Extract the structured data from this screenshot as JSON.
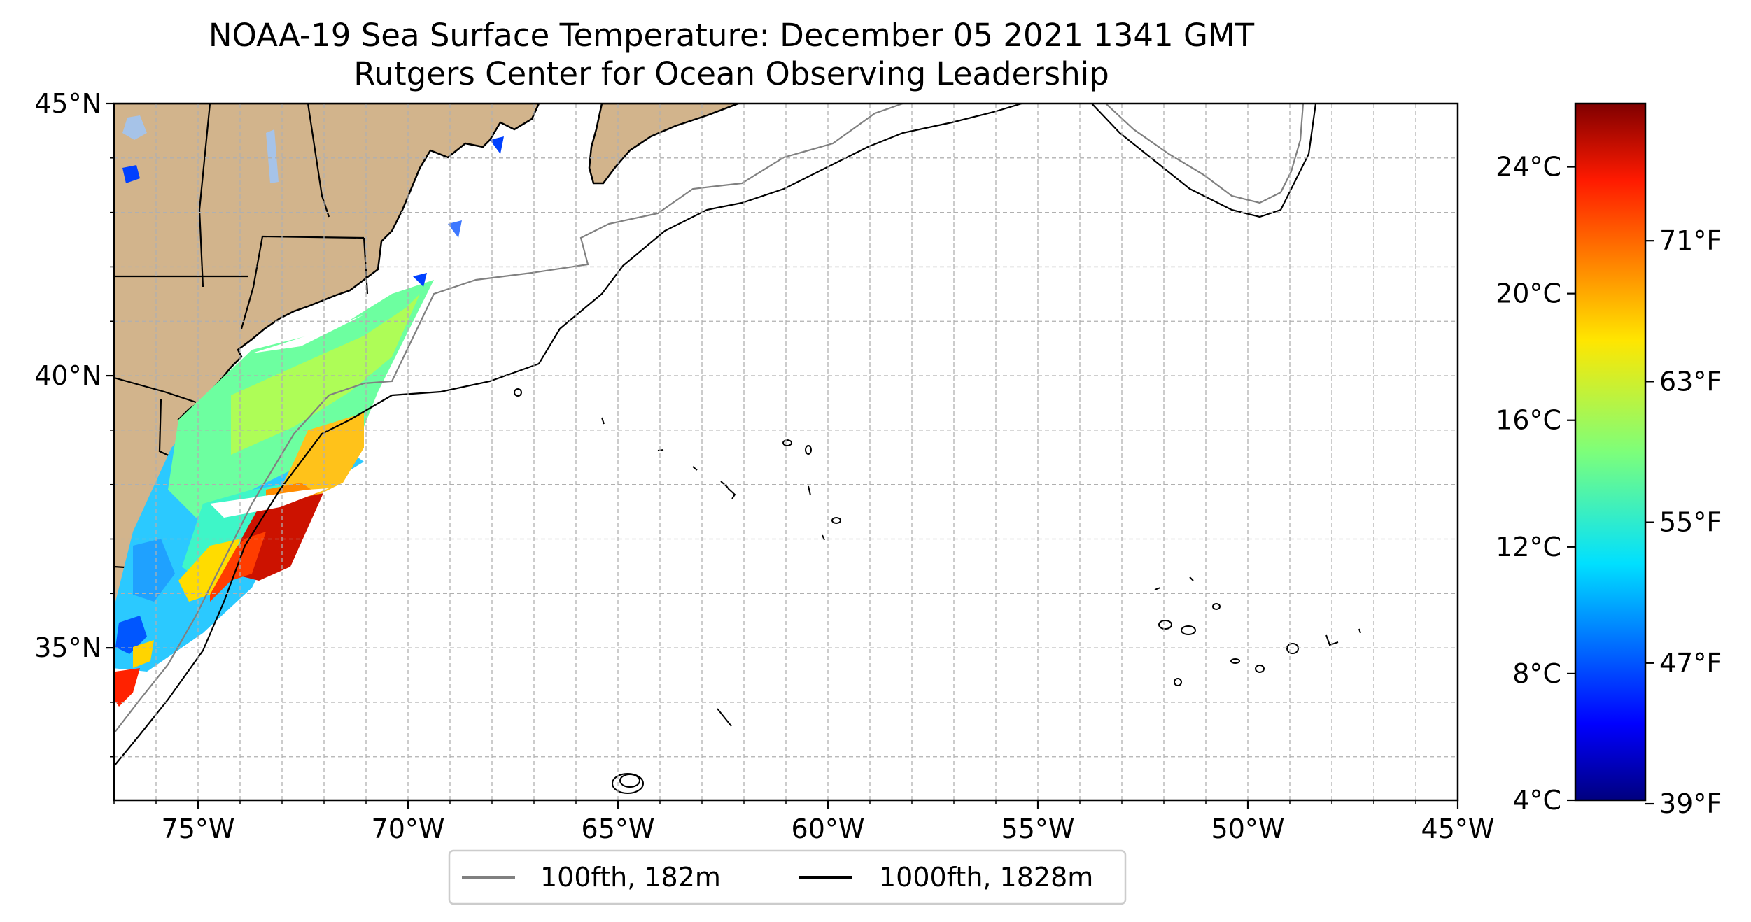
{
  "title_line1": "NOAA-19 Sea Surface Temperature: December 05 2021 1341 GMT",
  "title_line2": "Rutgers Center for Ocean Observing Leadership",
  "map": {
    "lon_range": [
      -77,
      -45
    ],
    "lat_range": [
      32.2,
      45
    ],
    "land_color": "#d2b48c",
    "lake_color": "#a6c3e8",
    "grid": true,
    "lon_ticks": [
      {
        "value": -75,
        "label": "75°W"
      },
      {
        "value": -70,
        "label": "70°W"
      },
      {
        "value": -65,
        "label": "65°W"
      },
      {
        "value": -60,
        "label": "60°W"
      },
      {
        "value": -55,
        "label": "55°W"
      },
      {
        "value": -50,
        "label": "50°W"
      },
      {
        "value": -45,
        "label": "45°W"
      }
    ],
    "lat_ticks": [
      {
        "value": 45,
        "label": "45°N"
      },
      {
        "value": 40,
        "label": "40°N"
      },
      {
        "value": 35,
        "label": "35°N"
      }
    ]
  },
  "colorbar": {
    "colormap": "jet",
    "range_c": [
      4,
      26
    ],
    "celsius_ticks": [
      {
        "value": 24,
        "label": "24°C"
      },
      {
        "value": 20,
        "label": "20°C"
      },
      {
        "value": 16,
        "label": "16°C"
      },
      {
        "value": 12,
        "label": "12°C"
      },
      {
        "value": 8,
        "label": "8°C"
      },
      {
        "value": 4,
        "label": "4°C"
      }
    ],
    "fahrenheit_ticks": [
      {
        "value": 71,
        "label": "71°F"
      },
      {
        "value": 63,
        "label": "63°F"
      },
      {
        "value": 55,
        "label": "55°F"
      },
      {
        "value": 47,
        "label": "47°F"
      },
      {
        "value": 39,
        "label": "39°F"
      }
    ]
  },
  "legend": {
    "placement": "bottom-center",
    "items": [
      {
        "label": "100fth, 182m",
        "color": "#808080"
      },
      {
        "label": "1000fth, 1828m",
        "color": "#000000"
      }
    ]
  }
}
